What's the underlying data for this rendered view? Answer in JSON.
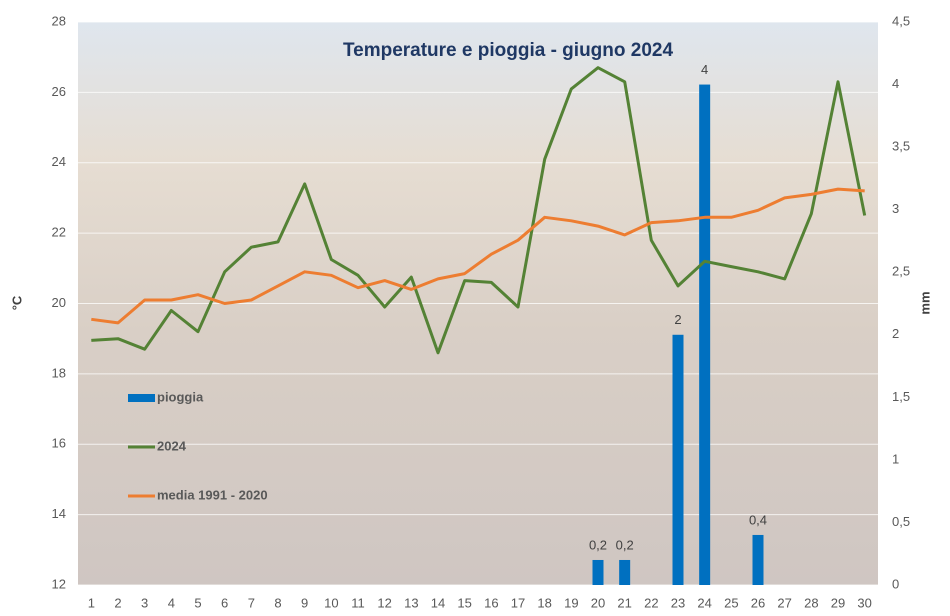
{
  "chart_data": {
    "type": "combo",
    "title": "Temperature e pioggia - giugno 2024",
    "y_label": "°C",
    "y2_label": "mm",
    "categories": [
      "1",
      "2",
      "3",
      "4",
      "5",
      "6",
      "7",
      "8",
      "9",
      "10",
      "11",
      "12",
      "13",
      "14",
      "15",
      "16",
      "17",
      "18",
      "19",
      "20",
      "21",
      "22",
      "23",
      "24",
      "25",
      "26",
      "27",
      "28",
      "29",
      "30"
    ],
    "ylim": [
      12,
      28
    ],
    "yticks": [
      12,
      14,
      16,
      18,
      20,
      22,
      24,
      26,
      28
    ],
    "y2lim": [
      0,
      4.5
    ],
    "y2ticks": [
      0,
      {
        "value": 0.5,
        "label": "0,5"
      },
      1,
      {
        "value": 1.5,
        "label": "1,5"
      },
      2,
      {
        "value": 2.5,
        "label": "2,5"
      },
      3,
      {
        "value": 3.5,
        "label": "3,5"
      },
      4,
      {
        "value": 4.5,
        "label": "4,5"
      }
    ],
    "grid": true,
    "legend": "left",
    "series": [
      {
        "name": "pioggia",
        "type": "bar",
        "axis": "y2",
        "color": "#0070c0",
        "values": [
          null,
          null,
          null,
          null,
          null,
          null,
          null,
          null,
          null,
          null,
          null,
          null,
          null,
          null,
          null,
          null,
          null,
          null,
          null,
          0.2,
          0.2,
          null,
          2,
          4,
          null,
          0.4,
          null,
          null,
          null,
          null
        ],
        "value_labels": [
          null,
          null,
          null,
          null,
          null,
          null,
          null,
          null,
          null,
          null,
          null,
          null,
          null,
          null,
          null,
          null,
          null,
          null,
          null,
          "0,2",
          "0,2",
          null,
          "2",
          "4",
          null,
          "0,4",
          null,
          null,
          null,
          null
        ]
      },
      {
        "name": "2024",
        "type": "line",
        "color": "#548235",
        "values": [
          18.95,
          19.0,
          18.7,
          19.8,
          19.2,
          20.9,
          21.6,
          21.75,
          23.4,
          21.25,
          20.8,
          19.9,
          20.75,
          18.6,
          20.65,
          20.6,
          19.9,
          24.1,
          26.1,
          26.7,
          26.3,
          21.8,
          20.5,
          21.2,
          21.05,
          20.9,
          20.7,
          22.55,
          26.3,
          22.5
        ]
      },
      {
        "name": "media 1991 - 2020",
        "type": "line",
        "color": "#ed7d31",
        "values": [
          19.55,
          19.45,
          20.1,
          20.1,
          20.25,
          20.0,
          20.1,
          20.5,
          20.9,
          20.8,
          20.45,
          20.65,
          20.4,
          20.7,
          20.85,
          21.4,
          21.8,
          22.45,
          22.35,
          22.2,
          21.95,
          22.3,
          22.35,
          22.45,
          22.45,
          22.65,
          23.0,
          23.1,
          23.25,
          23.2
        ]
      }
    ]
  }
}
